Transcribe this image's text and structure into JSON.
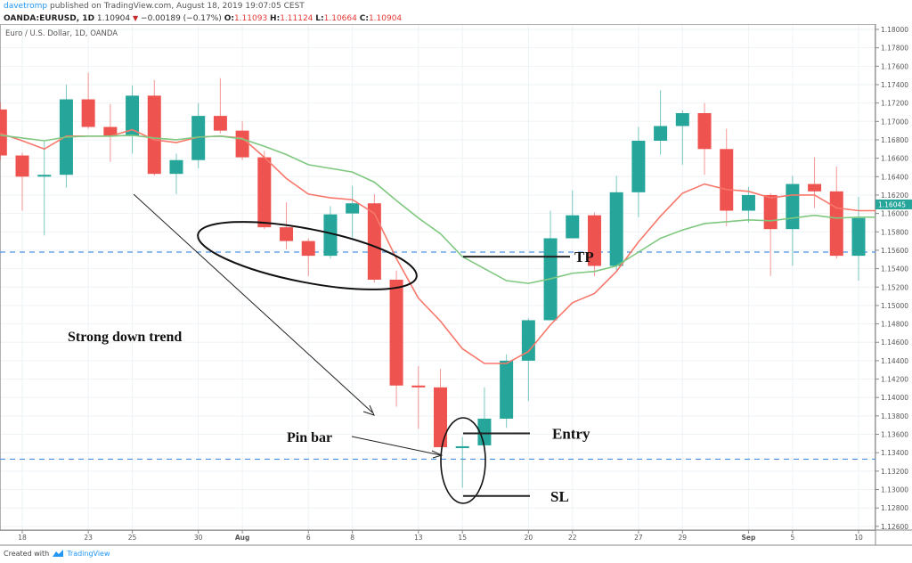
{
  "header": {
    "author": "davetromp",
    "published": "published on TradingView.com, August 18, 2019 19:07:05 CEST",
    "symbol": "OANDA:EURUSD, 1D",
    "last": "1.10904",
    "change": "−0.00189 (−0.17%)",
    "open_label": "O:",
    "open": "1.11093",
    "high_label": "H:",
    "high": "1.11124",
    "low_label": "L:",
    "low": "1.10664",
    "close_label": "C:",
    "close": "1.10904",
    "down_icon": "triangle-down-icon"
  },
  "footer": {
    "created_with": "Created with",
    "brand": "TradingView",
    "logo_icon": "tradingview-logo-icon"
  },
  "colors": {
    "up": "#26a69a",
    "down": "#ef5350",
    "ma_fast": "#f7786b",
    "ma_slow": "#7fc87f",
    "dashed": "#4a90e2",
    "accent": "#2196f3"
  },
  "chart_data": {
    "type": "candlestick",
    "title": "Euro / U.S. Dollar, 1D, OANDA",
    "ylim": [
      1.126,
      1.18
    ],
    "yticks": [
      "1.12600",
      "1.12800",
      "1.13000",
      "1.13200",
      "1.13400",
      "1.13600",
      "1.13800",
      "1.14000",
      "1.14200",
      "1.14400",
      "1.14600",
      "1.14800",
      "1.15000",
      "1.15200",
      "1.15400",
      "1.15600",
      "1.15800",
      "1.16000",
      "1.16200",
      "1.16400",
      "1.16600",
      "1.16800",
      "1.17000",
      "1.17200",
      "1.17400",
      "1.17600",
      "1.17800",
      "1.18000"
    ],
    "last_price_label": "1.16045",
    "last_price": 1.16045,
    "xticks": [
      {
        "i": 1,
        "label": "18"
      },
      {
        "i": 4,
        "label": "23"
      },
      {
        "i": 6,
        "label": "25"
      },
      {
        "i": 9,
        "label": "30"
      },
      {
        "i": 11,
        "label": "Aug",
        "bold": true
      },
      {
        "i": 14,
        "label": "6"
      },
      {
        "i": 16,
        "label": "8"
      },
      {
        "i": 19,
        "label": "13"
      },
      {
        "i": 21,
        "label": "15"
      },
      {
        "i": 24,
        "label": "20"
      },
      {
        "i": 26,
        "label": "22"
      },
      {
        "i": 29,
        "label": "27"
      },
      {
        "i": 31,
        "label": "29"
      },
      {
        "i": 34,
        "label": "Sep",
        "bold": true
      },
      {
        "i": 36,
        "label": "5"
      },
      {
        "i": 39,
        "label": "10"
      }
    ],
    "ohlc": [
      [
        1.1713,
        1.1721,
        1.1658,
        1.1663
      ],
      [
        1.1663,
        1.1666,
        1.1603,
        1.164
      ],
      [
        1.164,
        1.1678,
        1.1576,
        1.1642
      ],
      [
        1.1642,
        1.174,
        1.1628,
        1.1724
      ],
      [
        1.1724,
        1.1753,
        1.1692,
        1.1694
      ],
      [
        1.1694,
        1.1719,
        1.1656,
        1.1684
      ],
      [
        1.1684,
        1.1739,
        1.1665,
        1.1728
      ],
      [
        1.1728,
        1.1745,
        1.1641,
        1.1643
      ],
      [
        1.1643,
        1.1665,
        1.1621,
        1.1658
      ],
      [
        1.1658,
        1.172,
        1.1649,
        1.1706
      ],
      [
        1.1706,
        1.1747,
        1.1687,
        1.169
      ],
      [
        1.169,
        1.17,
        1.1658,
        1.1661
      ],
      [
        1.1661,
        1.1668,
        1.1583,
        1.1585
      ],
      [
        1.1585,
        1.1612,
        1.1561,
        1.157
      ],
      [
        1.157,
        1.1573,
        1.1532,
        1.1554
      ],
      [
        1.1554,
        1.1608,
        1.1551,
        1.1599
      ],
      [
        1.16,
        1.163,
        1.1574,
        1.1611
      ],
      [
        1.1611,
        1.1621,
        1.1525,
        1.1528
      ],
      [
        1.1528,
        1.1538,
        1.139,
        1.1413
      ],
      [
        1.1413,
        1.1434,
        1.1366,
        1.1411
      ],
      [
        1.1411,
        1.1431,
        1.1346,
        1.1346
      ],
      [
        1.1345,
        1.1357,
        1.1302,
        1.1347
      ],
      [
        1.1348,
        1.1411,
        1.1348,
        1.1377
      ],
      [
        1.1377,
        1.1447,
        1.1367,
        1.144
      ],
      [
        1.144,
        1.1486,
        1.1396,
        1.1484
      ],
      [
        1.1484,
        1.1603,
        1.1484,
        1.1573
      ],
      [
        1.1573,
        1.1625,
        1.1573,
        1.1598
      ],
      [
        1.1598,
        1.1601,
        1.1532,
        1.1543
      ],
      [
        1.1543,
        1.1641,
        1.1537,
        1.1623
      ],
      [
        1.1623,
        1.1694,
        1.1596,
        1.1679
      ],
      [
        1.1679,
        1.1734,
        1.1664,
        1.1695
      ],
      [
        1.1695,
        1.1712,
        1.1653,
        1.1709
      ],
      [
        1.1709,
        1.172,
        1.1642,
        1.167
      ],
      [
        1.167,
        1.1692,
        1.1586,
        1.1603
      ],
      [
        1.1603,
        1.1629,
        1.159,
        1.162
      ],
      [
        1.162,
        1.1622,
        1.1532,
        1.1583
      ],
      [
        1.1583,
        1.1641,
        1.1543,
        1.1632
      ],
      [
        1.1632,
        1.1661,
        1.1606,
        1.1624
      ],
      [
        1.1624,
        1.1651,
        1.1551,
        1.1554
      ],
      [
        1.1554,
        1.1618,
        1.1527,
        1.1595
      ]
    ],
    "series": [
      {
        "name": "MA fast",
        "values": [
          1.1687,
          1.1679,
          1.167,
          1.1684,
          1.1684,
          1.1684,
          1.1691,
          1.168,
          1.1677,
          1.1683,
          1.1684,
          1.1682,
          1.1661,
          1.1638,
          1.1621,
          1.1617,
          1.1615,
          1.16,
          1.1551,
          1.1508,
          1.1483,
          1.1453,
          1.1437,
          1.1437,
          1.145,
          1.1479,
          1.1503,
          1.1513,
          1.1537,
          1.1569,
          1.1597,
          1.1622,
          1.1632,
          1.1626,
          1.1624,
          1.1617,
          1.162,
          1.162,
          1.1606,
          1.1603
        ]
      },
      {
        "name": "MA slow",
        "values": [
          1.1685,
          1.1682,
          1.1679,
          1.1683,
          1.1684,
          1.1684,
          1.1685,
          1.1682,
          1.168,
          1.1683,
          1.1684,
          1.1681,
          1.1673,
          1.1664,
          1.1653,
          1.1649,
          1.1645,
          1.1634,
          1.1614,
          1.1595,
          1.1578,
          1.1553,
          1.154,
          1.1527,
          1.1524,
          1.1529,
          1.1535,
          1.1537,
          1.1543,
          1.1558,
          1.1573,
          1.1582,
          1.1589,
          1.1591,
          1.1593,
          1.1592,
          1.1595,
          1.1598,
          1.1595,
          1.1596
        ]
      }
    ],
    "hlines_dashed": [
      1.1558,
      1.1333
    ],
    "annotations": {
      "trend_text": "Strong down trend",
      "pin_bar_text": "Pin bar",
      "tp": {
        "label": "TP",
        "price": 1.1553
      },
      "entry": {
        "label": "Entry",
        "price": 1.1361
      },
      "sl": {
        "label": "SL",
        "price": 1.1293
      }
    }
  }
}
